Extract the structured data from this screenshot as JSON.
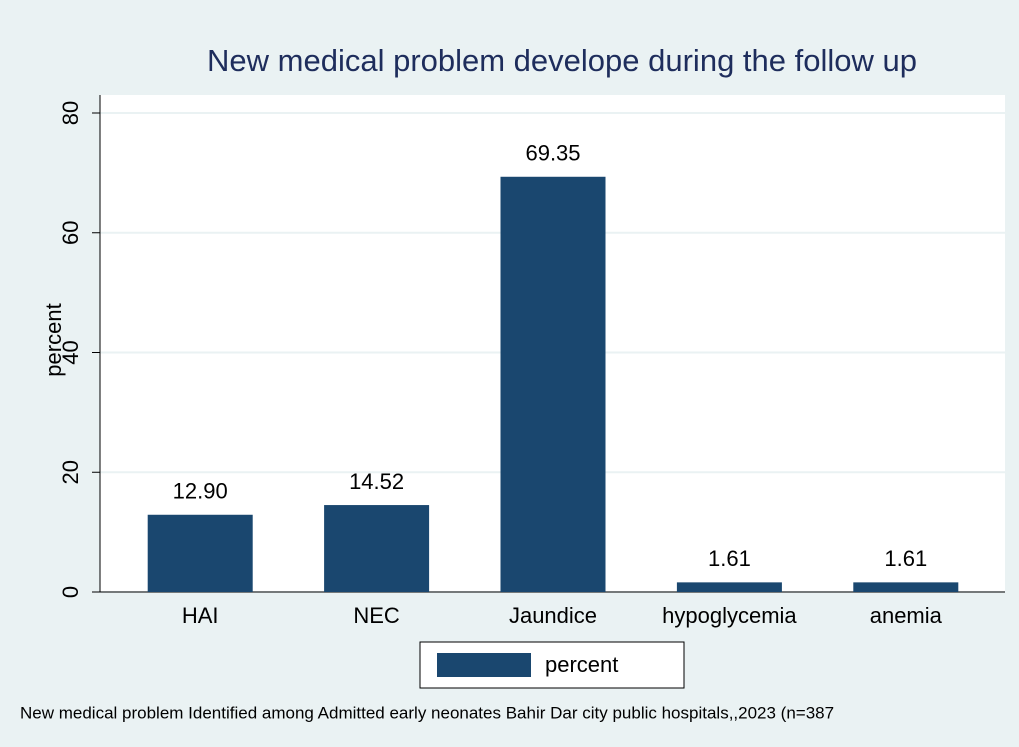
{
  "chart_data": {
    "type": "bar",
    "title": "New medical problem develope during the follow up",
    "y_label": "percent",
    "note": "New medical problem Identified among  Admitted early neonates  Bahir Dar city public hospitals,,2023 (n=387",
    "categories": [
      "HAI",
      "NEC",
      "Jaundice",
      "hypoglycemia",
      "anemia"
    ],
    "series": [
      {
        "name": "percent",
        "color": "#1a476f",
        "values": [
          12.9,
          14.52,
          69.35,
          1.61,
          1.61
        ],
        "value_labels": [
          "12.90",
          "14.52",
          "69.35",
          "1.61",
          "1.61"
        ]
      }
    ],
    "ylim": [
      0,
      80
    ],
    "yticks": [
      0,
      20,
      40,
      60,
      80
    ],
    "grid": true,
    "legend": "bottom"
  }
}
